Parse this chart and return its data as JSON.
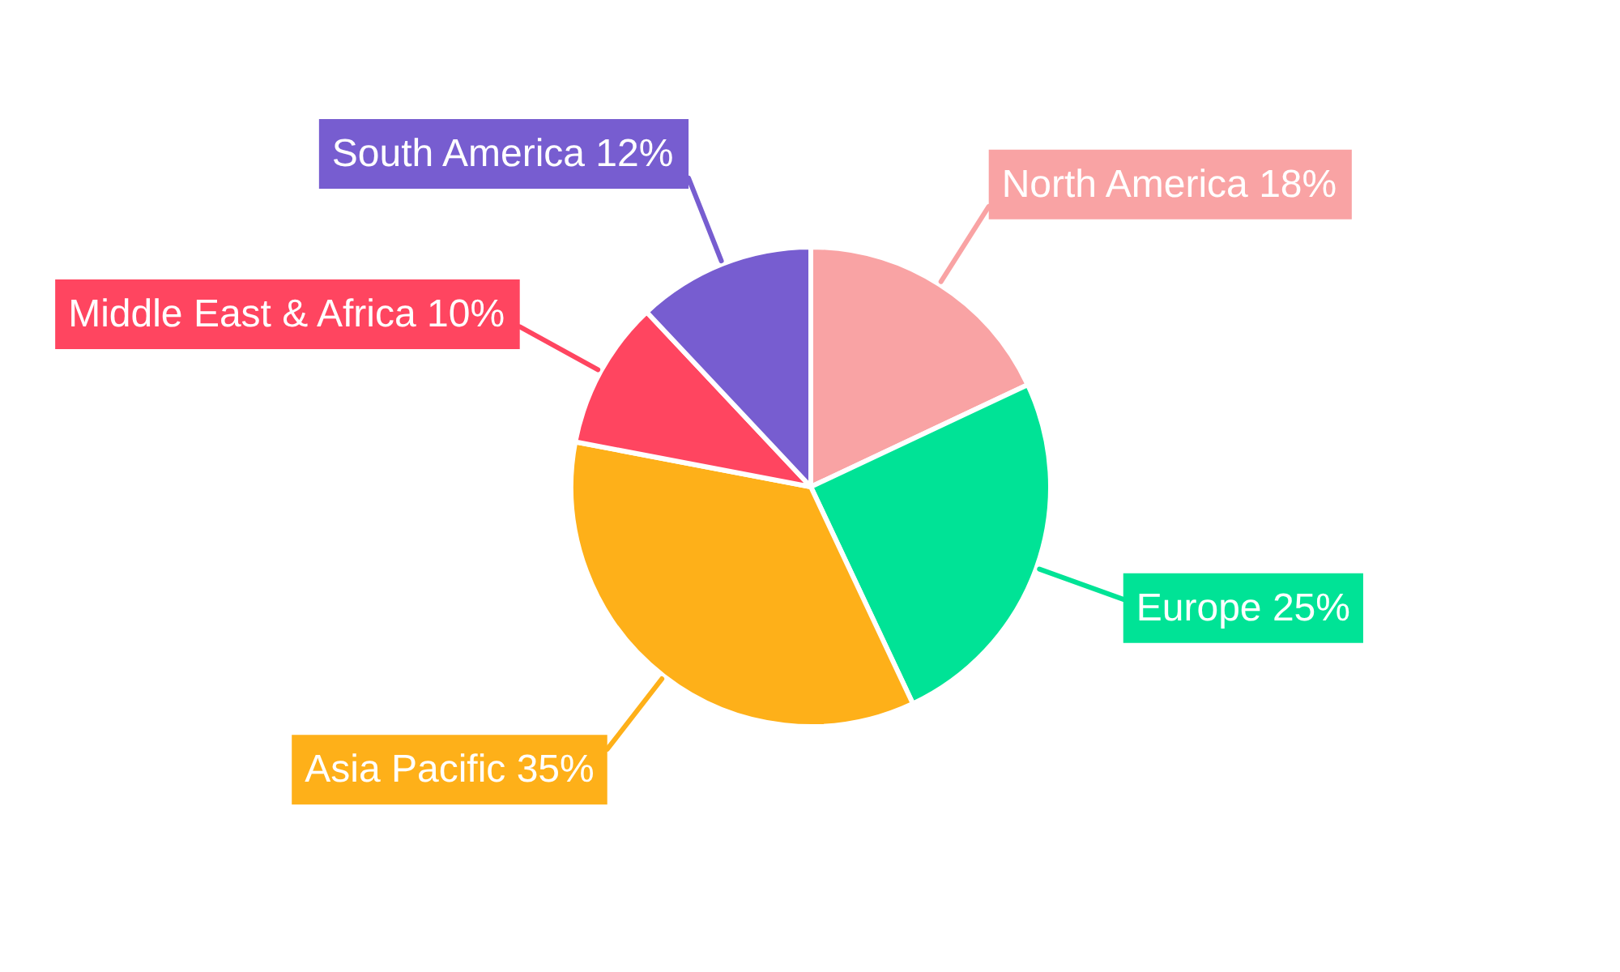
{
  "chart_data": {
    "type": "pie",
    "categories": [
      "North America",
      "Europe",
      "Asia Pacific",
      "Middle East & Africa",
      "South America"
    ],
    "values": [
      18,
      25,
      35,
      10,
      12
    ],
    "colors": [
      "#f9a3a4",
      "#00e396",
      "#feb019",
      "#ff4560",
      "#775dd0"
    ],
    "value_labels": [
      "18%",
      "25%",
      "35%",
      "10%",
      "12%"
    ]
  }
}
